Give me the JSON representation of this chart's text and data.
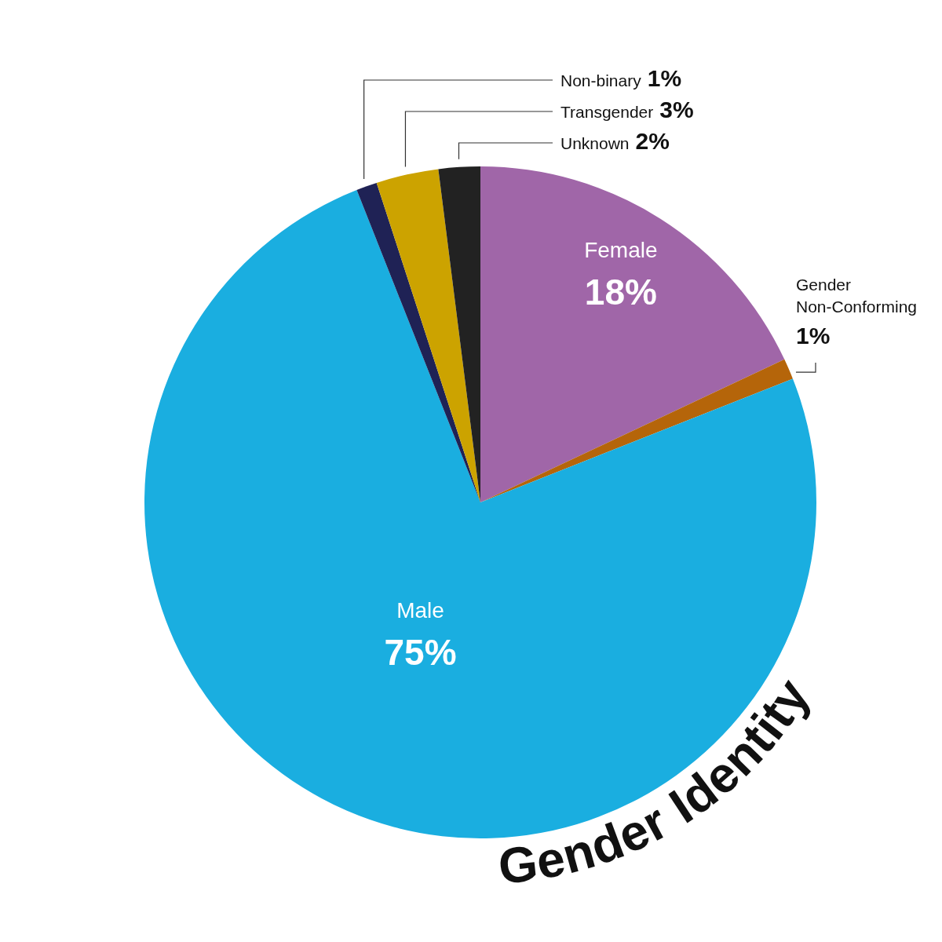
{
  "chart_data": {
    "type": "pie",
    "title": "Gender Identity",
    "categories": [
      "Female",
      "Gender Non-Conforming",
      "Male",
      "Non-binary",
      "Transgender",
      "Unknown"
    ],
    "values": [
      18,
      1,
      75,
      1,
      3,
      2
    ],
    "value_labels": [
      "18%",
      "1%",
      "75%",
      "1%",
      "3%",
      "2%"
    ],
    "colors": [
      "#a066a8",
      "#b5650a",
      "#1aaee0",
      "#1f2255",
      "#cca300",
      "#222222"
    ],
    "legend": false
  }
}
